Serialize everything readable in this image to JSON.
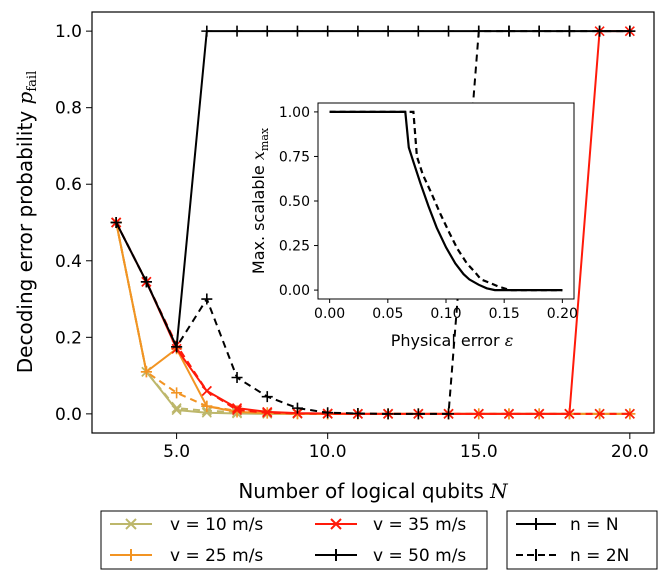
{
  "chart_data": [
    {
      "type": "line",
      "xlabel": "Number of logical qubits N",
      "ylabel": "Decoding error probability p_fail",
      "xlim": [
        2.2,
        20.8
      ],
      "ylim": [
        -0.05,
        1.05
      ],
      "xticks": [
        "5.0",
        "10.0",
        "15.0",
        "20.0"
      ],
      "yticks": [
        "0.0",
        "0.2",
        "0.4",
        "0.6",
        "0.8",
        "1.0"
      ],
      "grid": false,
      "x": [
        3,
        4,
        5,
        6,
        7,
        8,
        9,
        10,
        11,
        12,
        13,
        14,
        15,
        16,
        17,
        18,
        19,
        20
      ],
      "series": [
        {
          "name": "v = 10 m/s",
          "color": "#bdb76b",
          "marker": "x",
          "style": "solid",
          "values": [
            0.5,
            0.11,
            0.01,
            0.003,
            0.001,
            0,
            0,
            0,
            0,
            0,
            0,
            0,
            0,
            0,
            0,
            0,
            0,
            0
          ]
        },
        {
          "name": "v = 10 m/s",
          "color": "#bdb76b",
          "marker": "x",
          "style": "dashed",
          "values": [
            0.5,
            0.11,
            0.015,
            0.008,
            0.004,
            0.002,
            0,
            0,
            0,
            0,
            0,
            0,
            0,
            0,
            0,
            0,
            0,
            0
          ]
        },
        {
          "name": "v = 25 m/s",
          "color": "#f29423",
          "marker": "+",
          "style": "solid",
          "values": [
            0.5,
            0.11,
            0.17,
            0.02,
            0.005,
            0.002,
            0,
            0,
            0,
            0,
            0,
            0,
            0,
            0,
            0,
            0,
            0,
            0
          ]
        },
        {
          "name": "v = 25 m/s",
          "color": "#f29423",
          "marker": "+",
          "style": "dashed",
          "values": [
            0.5,
            0.11,
            0.055,
            0.02,
            0.008,
            0.003,
            0.001,
            0,
            0,
            0,
            0,
            0,
            0,
            0,
            0,
            0,
            0,
            0
          ]
        },
        {
          "name": "v = 35 m/s",
          "color": "#ff1a0a",
          "marker": "x",
          "style": "solid",
          "values": [
            0.5,
            0.345,
            0.17,
            0.06,
            0.015,
            0.005,
            0.002,
            0.001,
            0,
            0,
            0,
            0,
            0,
            0,
            0,
            0,
            1.0,
            1.0
          ]
        },
        {
          "name": "v = 35 m/s",
          "color": "#ff1a0a",
          "marker": "x",
          "style": "dashed",
          "values": [
            0.5,
            0.345,
            0.18,
            0.06,
            0.01,
            0.003,
            0.001,
            0,
            0,
            0,
            0,
            0,
            0,
            0,
            0,
            0,
            0,
            0
          ]
        },
        {
          "name": "v = 50 m/s",
          "color": "#000000",
          "marker": "+",
          "style": "solid",
          "values": [
            0.5,
            0.345,
            0.175,
            1.0,
            1.0,
            1.0,
            1.0,
            1.0,
            1.0,
            1.0,
            1.0,
            1.0,
            1.0,
            1.0,
            1.0,
            1.0,
            1.0,
            1.0
          ]
        },
        {
          "name": "v = 50 m/s",
          "color": "#000000",
          "marker": "+",
          "style": "dashed",
          "values": [
            0.5,
            0.345,
            0.175,
            0.3,
            0.095,
            0.045,
            0.015,
            0.003,
            0.001,
            0,
            0,
            0,
            1.0,
            1.0,
            1.0,
            1.0,
            1.0,
            1.0
          ]
        }
      ],
      "legend": {
        "placement": "bottom",
        "entries": [
          "v = 10 m/s",
          "v = 25 m/s",
          "v = 35 m/s",
          "v = 50 m/s"
        ],
        "style_entries": [
          "n = N",
          "n = 2N"
        ]
      }
    },
    {
      "type": "line",
      "xlabel": "Physical error ε",
      "ylabel": "Max. scalable x_max",
      "xlim": [
        -0.01,
        0.21
      ],
      "ylim": [
        -0.05,
        1.05
      ],
      "xticks": [
        "0.00",
        "0.05",
        "0.10",
        "0.15",
        "0.20"
      ],
      "yticks": [
        "0.00",
        "0.25",
        "0.50",
        "0.75",
        "1.00"
      ],
      "series": [
        {
          "name": "n = N",
          "style": "solid",
          "color": "#000000",
          "x": [
            0.0,
            0.065,
            0.068,
            0.072,
            0.078,
            0.085,
            0.092,
            0.1,
            0.108,
            0.115,
            0.12,
            0.128,
            0.135,
            0.142,
            0.2
          ],
          "values": [
            1.0,
            1.0,
            0.8,
            0.72,
            0.6,
            0.47,
            0.35,
            0.24,
            0.15,
            0.09,
            0.06,
            0.03,
            0.01,
            0.0,
            0.0
          ]
        },
        {
          "name": "n = 2N",
          "style": "dashed",
          "color": "#000000",
          "x": [
            0.0,
            0.072,
            0.075,
            0.08,
            0.087,
            0.095,
            0.103,
            0.11,
            0.118,
            0.125,
            0.13,
            0.138,
            0.145,
            0.155,
            0.2
          ],
          "values": [
            1.0,
            1.0,
            0.75,
            0.65,
            0.55,
            0.43,
            0.32,
            0.23,
            0.15,
            0.1,
            0.06,
            0.04,
            0.02,
            0.0,
            0.0
          ]
        }
      ]
    }
  ],
  "labels": {
    "main_xlabel": "Number of logical qubits",
    "main_xlabel_var": "N",
    "main_ylabel": "Decoding error probability",
    "main_ylabel_var": "p",
    "main_ylabel_sub": "fail",
    "inset_xlabel": "Physical error",
    "inset_xlabel_var": "ε",
    "inset_ylabel": "Max. scalable",
    "inset_ylabel_var": "x",
    "inset_ylabel_sub": "max"
  },
  "legend_box": {
    "speeds": [
      "v = 10 m/s",
      "v = 25 m/s",
      "v = 35 m/s",
      "v = 50 m/s"
    ],
    "styles": [
      "n = N",
      "n = 2N"
    ]
  }
}
